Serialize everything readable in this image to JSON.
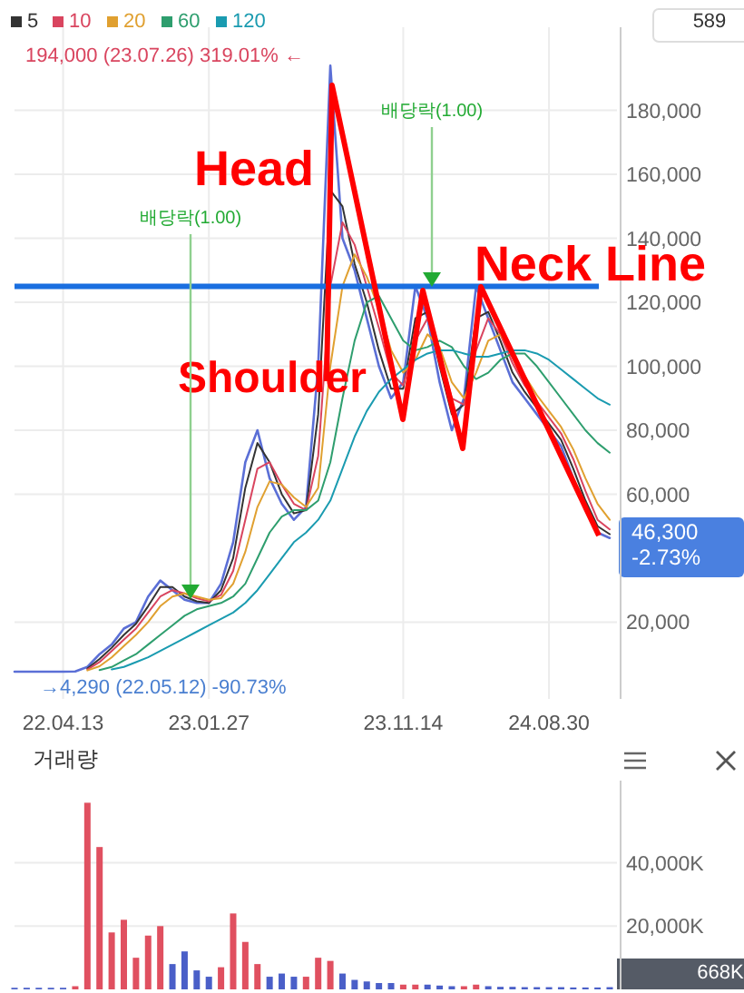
{
  "chart_data": [
    {
      "type": "line",
      "categories": [
        null,
        null,
        null,
        null,
        "22.04.13",
        null,
        null,
        null,
        null,
        null,
        null,
        null,
        null,
        null,
        null,
        null,
        "23.01.27",
        null,
        null,
        null,
        null,
        null,
        null,
        null,
        null,
        null,
        null,
        null,
        null,
        null,
        null,
        null,
        "23.11.14",
        null,
        null,
        null,
        null,
        null,
        null,
        null,
        null,
        null,
        null,
        null,
        "24.08.30",
        null,
        null,
        null,
        null,
        null
      ],
      "series": [
        {
          "color": "#5b6fd6",
          "values": [
            4500,
            4500,
            4500,
            4500,
            4500,
            4600,
            6000,
            10000,
            13000,
            18000,
            20000,
            28000,
            33000,
            30000,
            27000,
            26000,
            26000,
            32000,
            45000,
            70000,
            80000,
            65000,
            57000,
            52000,
            56000,
            100000,
            194000,
            140000,
            130000,
            115000,
            100000,
            90000,
            95000,
            125000,
            115000,
            95000,
            80000,
            90000,
            125000,
            115000,
            105000,
            95000,
            90000,
            85000,
            80000,
            75000,
            65000,
            55000,
            48000,
            46300
          ]
        },
        {
          "name": "5",
          "color": "#333333",
          "values": [
            null,
            null,
            null,
            null,
            null,
            null,
            5500,
            8500,
            12000,
            16000,
            19500,
            25000,
            31000,
            31000,
            28000,
            26500,
            26000,
            30000,
            40000,
            62000,
            76000,
            70000,
            60000,
            54000,
            55000,
            85000,
            155000,
            150000,
            132000,
            120000,
            105000,
            93000,
            93000,
            115000,
            117000,
            100000,
            85000,
            88000,
            115000,
            117000,
            108000,
            98000,
            92000,
            87000,
            82000,
            77000,
            68000,
            58000,
            50000,
            47500
          ]
        },
        {
          "name": "10",
          "color": "#d9455f",
          "values": [
            null,
            null,
            null,
            null,
            null,
            null,
            5200,
            7500,
            11000,
            14500,
            18000,
            23000,
            28000,
            30000,
            29000,
            27500,
            26500,
            28500,
            36000,
            52000,
            68000,
            70000,
            63000,
            57000,
            55000,
            72000,
            125000,
            145000,
            138000,
            125000,
            112000,
            98000,
            94000,
            108000,
            115000,
            104000,
            90000,
            88000,
            105000,
            115000,
            110000,
            101000,
            94000,
            89000,
            84000,
            79000,
            71000,
            61000,
            52000,
            49000
          ]
        },
        {
          "name": "20",
          "color": "#e0a030",
          "values": [
            null,
            null,
            null,
            null,
            null,
            null,
            4900,
            6200,
            9000,
            12500,
            16000,
            20000,
            25000,
            28000,
            29000,
            28000,
            27000,
            27500,
            32000,
            42000,
            56000,
            64000,
            63000,
            59000,
            56000,
            62000,
            100000,
            125000,
            135000,
            128000,
            118000,
            105000,
            98000,
            102000,
            110000,
            106000,
            95000,
            90000,
            98000,
            108000,
            110000,
            104000,
            97000,
            91000,
            86000,
            81000,
            74000,
            65000,
            57000,
            52000
          ]
        },
        {
          "name": "60",
          "color": "#2e9e6e",
          "values": [
            null,
            null,
            null,
            null,
            null,
            null,
            null,
            5000,
            6000,
            8000,
            10000,
            13000,
            16000,
            19000,
            22000,
            24000,
            25000,
            26000,
            28000,
            32000,
            40000,
            48000,
            53000,
            55000,
            55000,
            58000,
            70000,
            90000,
            108000,
            120000,
            122000,
            115000,
            108000,
            105000,
            106000,
            108000,
            106000,
            100000,
            96000,
            98000,
            102000,
            104000,
            104000,
            100000,
            95000,
            90000,
            85000,
            80000,
            76000,
            73000
          ]
        },
        {
          "name": "120",
          "color": "#1a9bb0",
          "values": [
            null,
            null,
            null,
            null,
            null,
            null,
            null,
            null,
            5200,
            6000,
            7500,
            9000,
            11000,
            13000,
            15000,
            17000,
            19000,
            21000,
            23000,
            26000,
            30000,
            35000,
            40000,
            45000,
            48000,
            52000,
            58000,
            68000,
            78000,
            86000,
            92000,
            96000,
            99000,
            102000,
            104000,
            105000,
            105000,
            104000,
            103000,
            103000,
            104000,
            105000,
            105000,
            104000,
            102000,
            99000,
            96000,
            93000,
            90000,
            88000
          ]
        }
      ],
      "ylim": [
        -4000,
        206000
      ],
      "yticks": [
        {
          "value": 20000,
          "label": "20,000"
        },
        {
          "value": 60000,
          "label": "60,000"
        },
        {
          "value": 80000,
          "label": "80,000"
        },
        {
          "value": 100000,
          "label": "100,000"
        },
        {
          "value": 120000,
          "label": "120,000"
        },
        {
          "value": 140000,
          "label": "140,000"
        },
        {
          "value": 160000,
          "label": "160,000"
        },
        {
          "value": 180000,
          "label": "180,000"
        }
      ],
      "grid": true,
      "legend": "top left",
      "ref_lines": [
        {
          "axis": "y",
          "value": 125000,
          "label": "Neck Line",
          "color": "#1a6fe0"
        }
      ],
      "annotations": [
        "194,000 (23.07.26) 319.01% ←",
        "배당락(1.00)",
        "배당락(1.00)",
        "Head",
        "Shoulder",
        "46,300",
        "-2.73%",
        "→4,290 (22.05.12) -90.73%",
        "589"
      ]
    },
    {
      "type": "bar",
      "title": "거래량",
      "categories": [
        null,
        null,
        null,
        null,
        null,
        null,
        null,
        null,
        null,
        null,
        null,
        null,
        null,
        null,
        null,
        null,
        null,
        null,
        null,
        null,
        null,
        null,
        null,
        null,
        null,
        null,
        null,
        null,
        null,
        null,
        null,
        null,
        null,
        null,
        null,
        null,
        null,
        null,
        null,
        null,
        null,
        null,
        null,
        null,
        null,
        null,
        null,
        null,
        null,
        null
      ],
      "values": [
        500,
        500,
        500,
        500,
        500,
        1000,
        59000,
        45000,
        18000,
        22000,
        10000,
        17000,
        20000,
        8000,
        12000,
        6000,
        4000,
        7000,
        24000,
        15000,
        8000,
        4000,
        5000,
        4000,
        4000,
        10000,
        9000,
        5000,
        3000,
        2500,
        2000,
        2000,
        1500,
        1500,
        1500,
        1200,
        1000,
        1000,
        1500,
        1000,
        800,
        800,
        700,
        700,
        700,
        700,
        600,
        600,
        600,
        700
      ],
      "colors": [
        "#4a5fc8",
        "#4a5fc8",
        "#4a5fc8",
        "#4a5fc8",
        "#4a5fc8",
        "#e05060",
        "#e05060",
        "#e05060",
        "#e05060",
        "#e05060",
        "#e05060",
        "#e05060",
        "#e05060",
        "#4a5fc8",
        "#4a5fc8",
        "#4a5fc8",
        "#4a5fc8",
        "#e05060",
        "#e05060",
        "#e05060",
        "#e05060",
        "#4a5fc8",
        "#4a5fc8",
        "#4a5fc8",
        "#e05060",
        "#e05060",
        "#e05060",
        "#4a5fc8",
        "#4a5fc8",
        "#4a5fc8",
        "#4a5fc8",
        "#4a5fc8",
        "#e05060",
        "#e05060",
        "#4a5fc8",
        "#4a5fc8",
        "#4a5fc8",
        "#e05060",
        "#e05060",
        "#4a5fc8",
        "#4a5fc8",
        "#4a5fc8",
        "#4a5fc8",
        "#4a5fc8",
        "#4a5fc8",
        "#4a5fc8",
        "#4a5fc8",
        "#4a5fc8",
        "#4a5fc8",
        "#4a5fc8"
      ],
      "ylim": [
        0,
        66000
      ],
      "yticks": [
        {
          "value": 20000,
          "label": "20,000K"
        },
        {
          "value": 40000,
          "label": "40,000K"
        }
      ],
      "grid": true,
      "annotations": [
        "668K"
      ]
    }
  ]
}
